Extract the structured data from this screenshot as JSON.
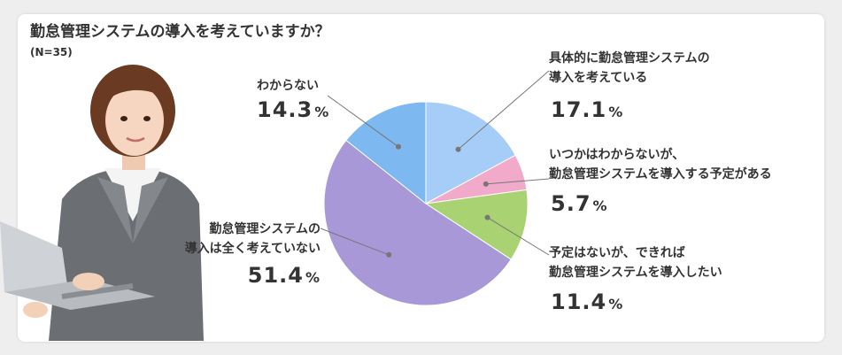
{
  "title": "勤怠管理システムの導入を考えていますか？",
  "sample_size": "(N=35)",
  "colors": {
    "wakaranai": "#7db8f0",
    "kangaeteiru": "#a6cdf7",
    "itsuka": "#f2aacb",
    "yotei_nashi": "#a9d273",
    "kangaete_inai": "#a898d8"
  },
  "chart_data": {
    "type": "pie",
    "unit": "%",
    "slices": [
      {
        "label_lines": [
          "具体的に勤怠管理システムの",
          "導入を考えている"
        ],
        "value": 17.1,
        "value_text": "17.1",
        "color": "#a6cdf7"
      },
      {
        "label_lines": [
          "いつかはわからないが、",
          "勤怠管理システムを導入する予定がある"
        ],
        "value": 5.7,
        "value_text": "5.7",
        "color": "#f2aacb"
      },
      {
        "label_lines": [
          "予定はないが、できれば",
          "勤怠管理システムを導入したい"
        ],
        "value": 11.4,
        "value_text": "11.4",
        "color": "#a9d273"
      },
      {
        "label_lines": [
          "勤怠管理システムの",
          "導入は全く考えていない"
        ],
        "value": 51.4,
        "value_text": "51.4",
        "color": "#a898d8"
      },
      {
        "label_lines": [
          "わからない"
        ],
        "value": 14.3,
        "value_text": "14.3",
        "color": "#7db8f0"
      }
    ]
  }
}
